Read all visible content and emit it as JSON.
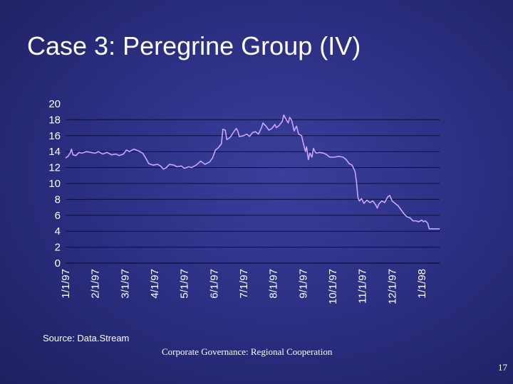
{
  "slide": {
    "title": "Case 3: Peregrine Group (IV)",
    "source": "Source: Data.Stream",
    "footer": "Corporate Governance: Regional Cooperation",
    "page_number": "17"
  },
  "colors": {
    "background": "#2a2d7e",
    "line": "#c9a8ff",
    "grid": "#0d0f3a",
    "text": "#ffffff"
  },
  "chart_data": {
    "type": "line",
    "title": "",
    "xlabel": "",
    "ylabel": "",
    "ylim": [
      0,
      20
    ],
    "y_ticks": [
      0,
      2,
      4,
      6,
      8,
      10,
      12,
      14,
      16,
      18,
      20
    ],
    "x_range_months": [
      0,
      12.6
    ],
    "x_ticks": [
      {
        "label": "1/1/97",
        "month": 0
      },
      {
        "label": "2/1/97",
        "month": 1
      },
      {
        "label": "3/1/97",
        "month": 2
      },
      {
        "label": "4/1/97",
        "month": 3
      },
      {
        "label": "5/1/97",
        "month": 4
      },
      {
        "label": "6/1/97",
        "month": 5
      },
      {
        "label": "7/1/97",
        "month": 6
      },
      {
        "label": "8/1/97",
        "month": 7
      },
      {
        "label": "9/1/97",
        "month": 8
      },
      {
        "label": "10/1/97",
        "month": 9
      },
      {
        "label": "11/1/97",
        "month": 10
      },
      {
        "label": "12/1/97",
        "month": 11
      },
      {
        "label": "1/1/98",
        "month": 12
      }
    ],
    "grid": true,
    "series": [
      {
        "name": "Peregrine Group",
        "points": [
          [
            0.0,
            13.2
          ],
          [
            0.08,
            13.4
          ],
          [
            0.15,
            13.8
          ],
          [
            0.2,
            14.3
          ],
          [
            0.25,
            13.6
          ],
          [
            0.35,
            13.5
          ],
          [
            0.45,
            13.9
          ],
          [
            0.55,
            13.8
          ],
          [
            0.7,
            14.0
          ],
          [
            0.85,
            13.9
          ],
          [
            1.0,
            13.8
          ],
          [
            1.1,
            14.0
          ],
          [
            1.25,
            13.7
          ],
          [
            1.4,
            13.9
          ],
          [
            1.55,
            13.6
          ],
          [
            1.7,
            13.7
          ],
          [
            1.8,
            13.5
          ],
          [
            1.95,
            13.7
          ],
          [
            2.05,
            14.2
          ],
          [
            2.15,
            14.0
          ],
          [
            2.3,
            14.3
          ],
          [
            2.45,
            14.1
          ],
          [
            2.6,
            13.8
          ],
          [
            2.7,
            13.2
          ],
          [
            2.8,
            12.5
          ],
          [
            2.95,
            12.3
          ],
          [
            3.1,
            12.4
          ],
          [
            3.2,
            12.2
          ],
          [
            3.3,
            11.8
          ],
          [
            3.4,
            12.0
          ],
          [
            3.5,
            12.4
          ],
          [
            3.65,
            12.3
          ],
          [
            3.75,
            12.1
          ],
          [
            3.9,
            12.2
          ],
          [
            4.0,
            11.9
          ],
          [
            4.15,
            12.1
          ],
          [
            4.25,
            12.0
          ],
          [
            4.4,
            12.3
          ],
          [
            4.55,
            12.8
          ],
          [
            4.7,
            12.4
          ],
          [
            4.85,
            12.7
          ],
          [
            4.95,
            13.2
          ],
          [
            5.05,
            14.2
          ],
          [
            5.15,
            14.5
          ],
          [
            5.25,
            15.0
          ],
          [
            5.3,
            16.8
          ],
          [
            5.38,
            16.7
          ],
          [
            5.43,
            15.5
          ],
          [
            5.55,
            15.8
          ],
          [
            5.65,
            16.4
          ],
          [
            5.75,
            16.9
          ],
          [
            5.8,
            16.6
          ],
          [
            5.85,
            15.9
          ],
          [
            6.0,
            16.0
          ],
          [
            6.1,
            16.2
          ],
          [
            6.2,
            15.9
          ],
          [
            6.3,
            16.4
          ],
          [
            6.4,
            16.5
          ],
          [
            6.5,
            16.2
          ],
          [
            6.6,
            17.0
          ],
          [
            6.65,
            17.6
          ],
          [
            6.75,
            17.2
          ],
          [
            6.85,
            16.7
          ],
          [
            6.95,
            16.9
          ],
          [
            7.05,
            17.4
          ],
          [
            7.1,
            17.0
          ],
          [
            7.2,
            17.3
          ],
          [
            7.3,
            17.8
          ],
          [
            7.35,
            18.6
          ],
          [
            7.42,
            18.1
          ],
          [
            7.5,
            17.6
          ],
          [
            7.55,
            18.3
          ],
          [
            7.62,
            17.9
          ],
          [
            7.7,
            16.6
          ],
          [
            7.78,
            17.2
          ],
          [
            7.85,
            16.2
          ],
          [
            7.95,
            16.0
          ],
          [
            8.0,
            15.2
          ],
          [
            8.08,
            14.0
          ],
          [
            8.12,
            14.6
          ],
          [
            8.18,
            13.0
          ],
          [
            8.23,
            13.8
          ],
          [
            8.3,
            13.3
          ],
          [
            8.35,
            14.4
          ],
          [
            8.4,
            14.0
          ],
          [
            8.45,
            13.8
          ],
          [
            8.55,
            13.9
          ],
          [
            8.7,
            13.8
          ],
          [
            8.8,
            13.6
          ],
          [
            8.9,
            13.3
          ],
          [
            9.05,
            13.3
          ],
          [
            9.2,
            13.4
          ],
          [
            9.35,
            13.3
          ],
          [
            9.45,
            13.0
          ],
          [
            9.55,
            12.5
          ],
          [
            9.65,
            12.3
          ],
          [
            9.75,
            11.5
          ],
          [
            9.8,
            10.2
          ],
          [
            9.85,
            8.2
          ],
          [
            9.9,
            7.8
          ],
          [
            9.97,
            8.1
          ],
          [
            10.05,
            7.5
          ],
          [
            10.15,
            7.9
          ],
          [
            10.25,
            7.6
          ],
          [
            10.35,
            7.8
          ],
          [
            10.45,
            7.3
          ],
          [
            10.5,
            6.9
          ],
          [
            10.55,
            7.4
          ],
          [
            10.65,
            7.8
          ],
          [
            10.75,
            7.6
          ],
          [
            10.85,
            8.3
          ],
          [
            10.92,
            8.5
          ],
          [
            11.0,
            7.8
          ],
          [
            11.1,
            7.5
          ],
          [
            11.2,
            7.2
          ],
          [
            11.3,
            6.7
          ],
          [
            11.4,
            6.2
          ],
          [
            11.5,
            5.8
          ],
          [
            11.6,
            5.7
          ],
          [
            11.7,
            5.3
          ],
          [
            11.8,
            5.3
          ],
          [
            11.9,
            5.2
          ],
          [
            12.0,
            5.4
          ],
          [
            12.05,
            5.2
          ],
          [
            12.12,
            5.3
          ],
          [
            12.2,
            5.0
          ],
          [
            12.25,
            4.3
          ],
          [
            12.6,
            4.3
          ]
        ]
      }
    ]
  }
}
